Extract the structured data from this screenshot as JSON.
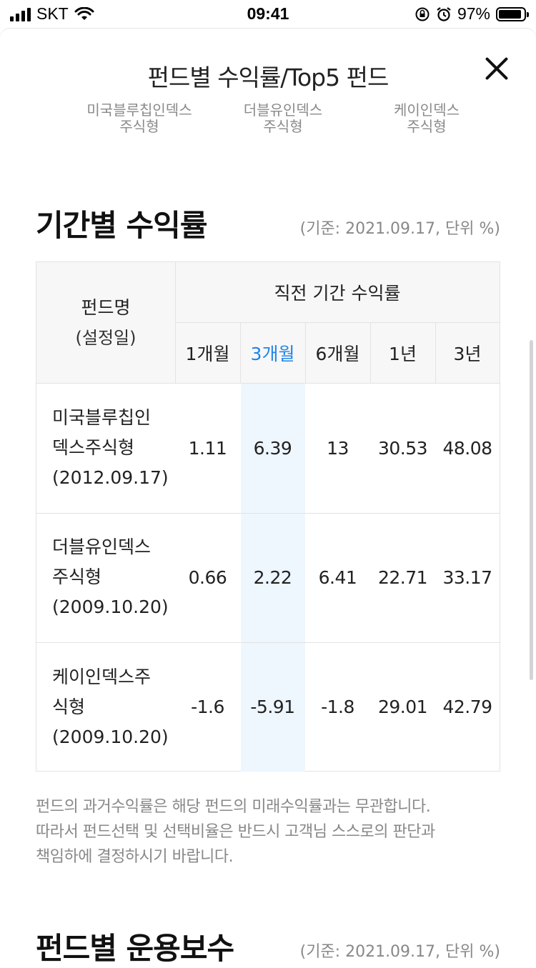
{
  "status_bar": {
    "carrier": "SKT",
    "time": "09:41",
    "battery": "97%"
  },
  "header": {
    "title": "펀드별 수익률/Top5 펀드"
  },
  "fund_tabs": [
    {
      "line1": "미국블루칩인덱스",
      "line2": "주식형"
    },
    {
      "line1": "더블유인덱스",
      "line2": "주식형"
    },
    {
      "line1": "케이인덱스",
      "line2": "주식형"
    }
  ],
  "returns_section": {
    "title": "기간별 수익률",
    "basis": "(기준: 2021.09.17, 단위 %)",
    "table": {
      "fund_col_header": {
        "line1": "펀드명",
        "line2": "(설정일)"
      },
      "group_header": "직전 기간 수익률",
      "period_headers": [
        "1개월",
        "3개월",
        "6개월",
        "1년",
        "3년"
      ],
      "rows": [
        {
          "name_lines": [
            "미국블루칩인",
            "덱스주식형",
            "(2012.09.17)"
          ],
          "values": [
            "1.11",
            "6.39",
            "13",
            "30.53",
            "48.08"
          ]
        },
        {
          "name_lines": [
            "더블유인덱스",
            "주식형",
            "(2009.10.20)"
          ],
          "values": [
            "0.66",
            "2.22",
            "6.41",
            "22.71",
            "33.17"
          ]
        },
        {
          "name_lines": [
            "케이인덱스주",
            "식형",
            "(2009.10.20)"
          ],
          "values": [
            "-1.6",
            "-5.91",
            "-1.8",
            "29.01",
            "42.79"
          ]
        }
      ]
    },
    "notice_lines": [
      "펀드의 과거수익률은 해당 펀드의 미래수익률과는 무관합니다.",
      "따라서 펀드선택 및 선택비율은 반드시 고객님 스스로의 판단과",
      "책임하에 결정하시기 바랍니다."
    ]
  },
  "fee_section": {
    "title": "펀드별 운용보수",
    "basis": "(기준: 2021.09.17, 단위 %)"
  },
  "colors": {
    "accent": "#1f84e8",
    "highlight_column": "#eef6fe",
    "header_bg": "#f7f7f7"
  }
}
